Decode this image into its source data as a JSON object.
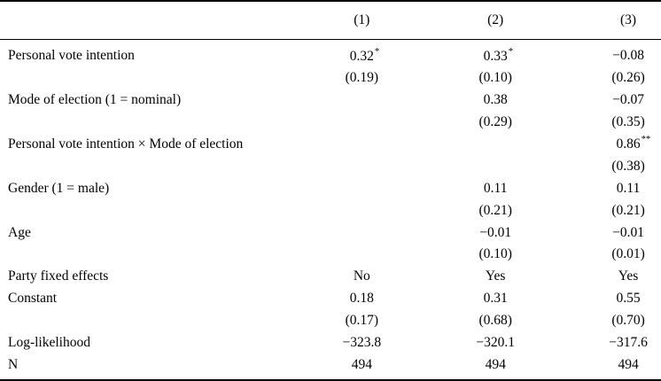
{
  "page": {
    "background": "#ffffff",
    "text_color": "#000000",
    "rule_color": "#000000"
  },
  "table": {
    "columns": [
      "(1)",
      "(2)",
      "(3)"
    ],
    "rows": [
      {
        "label": "Personal vote intention",
        "c1": "0.32",
        "c1s": "*",
        "c2": "0.33",
        "c2s": "*",
        "c3": "−0.08",
        "c3s": ""
      },
      {
        "label": "",
        "c1": "(0.19)",
        "c1s": "",
        "c2": "(0.10)",
        "c2s": "",
        "c3": "(0.26)",
        "c3s": ""
      },
      {
        "label": "Mode of election (1 = nominal)",
        "c1": "",
        "c1s": "",
        "c2": "0.38",
        "c2s": "",
        "c3": "−0.07",
        "c3s": ""
      },
      {
        "label": "",
        "c1": "",
        "c1s": "",
        "c2": "(0.29)",
        "c2s": "",
        "c3": "(0.35)",
        "c3s": ""
      },
      {
        "label": "Personal vote intention × Mode of election",
        "c1": "",
        "c1s": "",
        "c2": "",
        "c2s": "",
        "c3": "0.86",
        "c3s": "**"
      },
      {
        "label": "",
        "c1": "",
        "c1s": "",
        "c2": "",
        "c2s": "",
        "c3": "(0.38)",
        "c3s": ""
      },
      {
        "label": "Gender (1 = male)",
        "c1": "",
        "c1s": "",
        "c2": "0.11",
        "c2s": "",
        "c3": "0.11",
        "c3s": ""
      },
      {
        "label": "",
        "c1": "",
        "c1s": "",
        "c2": "(0.21)",
        "c2s": "",
        "c3": "(0.21)",
        "c3s": ""
      },
      {
        "label": "Age",
        "c1": "",
        "c1s": "",
        "c2": "−0.01",
        "c2s": "",
        "c3": "−0.01",
        "c3s": ""
      },
      {
        "label": "",
        "c1": "",
        "c1s": "",
        "c2": "(0.10)",
        "c2s": "",
        "c3": "(0.01)",
        "c3s": ""
      },
      {
        "label": "Party fixed effects",
        "c1": "No",
        "c1s": "",
        "c2": "Yes",
        "c2s": "",
        "c3": "Yes",
        "c3s": ""
      },
      {
        "label": "Constant",
        "c1": "0.18",
        "c1s": "",
        "c2": "0.31",
        "c2s": "",
        "c3": "0.55",
        "c3s": ""
      },
      {
        "label": "",
        "c1": "(0.17)",
        "c1s": "",
        "c2": "(0.68)",
        "c2s": "",
        "c3": "(0.70)",
        "c3s": ""
      },
      {
        "label": "Log-likelihood",
        "c1": "−323.8",
        "c1s": "",
        "c2": "−320.1",
        "c2s": "",
        "c3": "−317.6",
        "c3s": ""
      },
      {
        "label": "N",
        "c1": "494",
        "c1s": "",
        "c2": "494",
        "c2s": "",
        "c3": "494",
        "c3s": ""
      }
    ]
  }
}
